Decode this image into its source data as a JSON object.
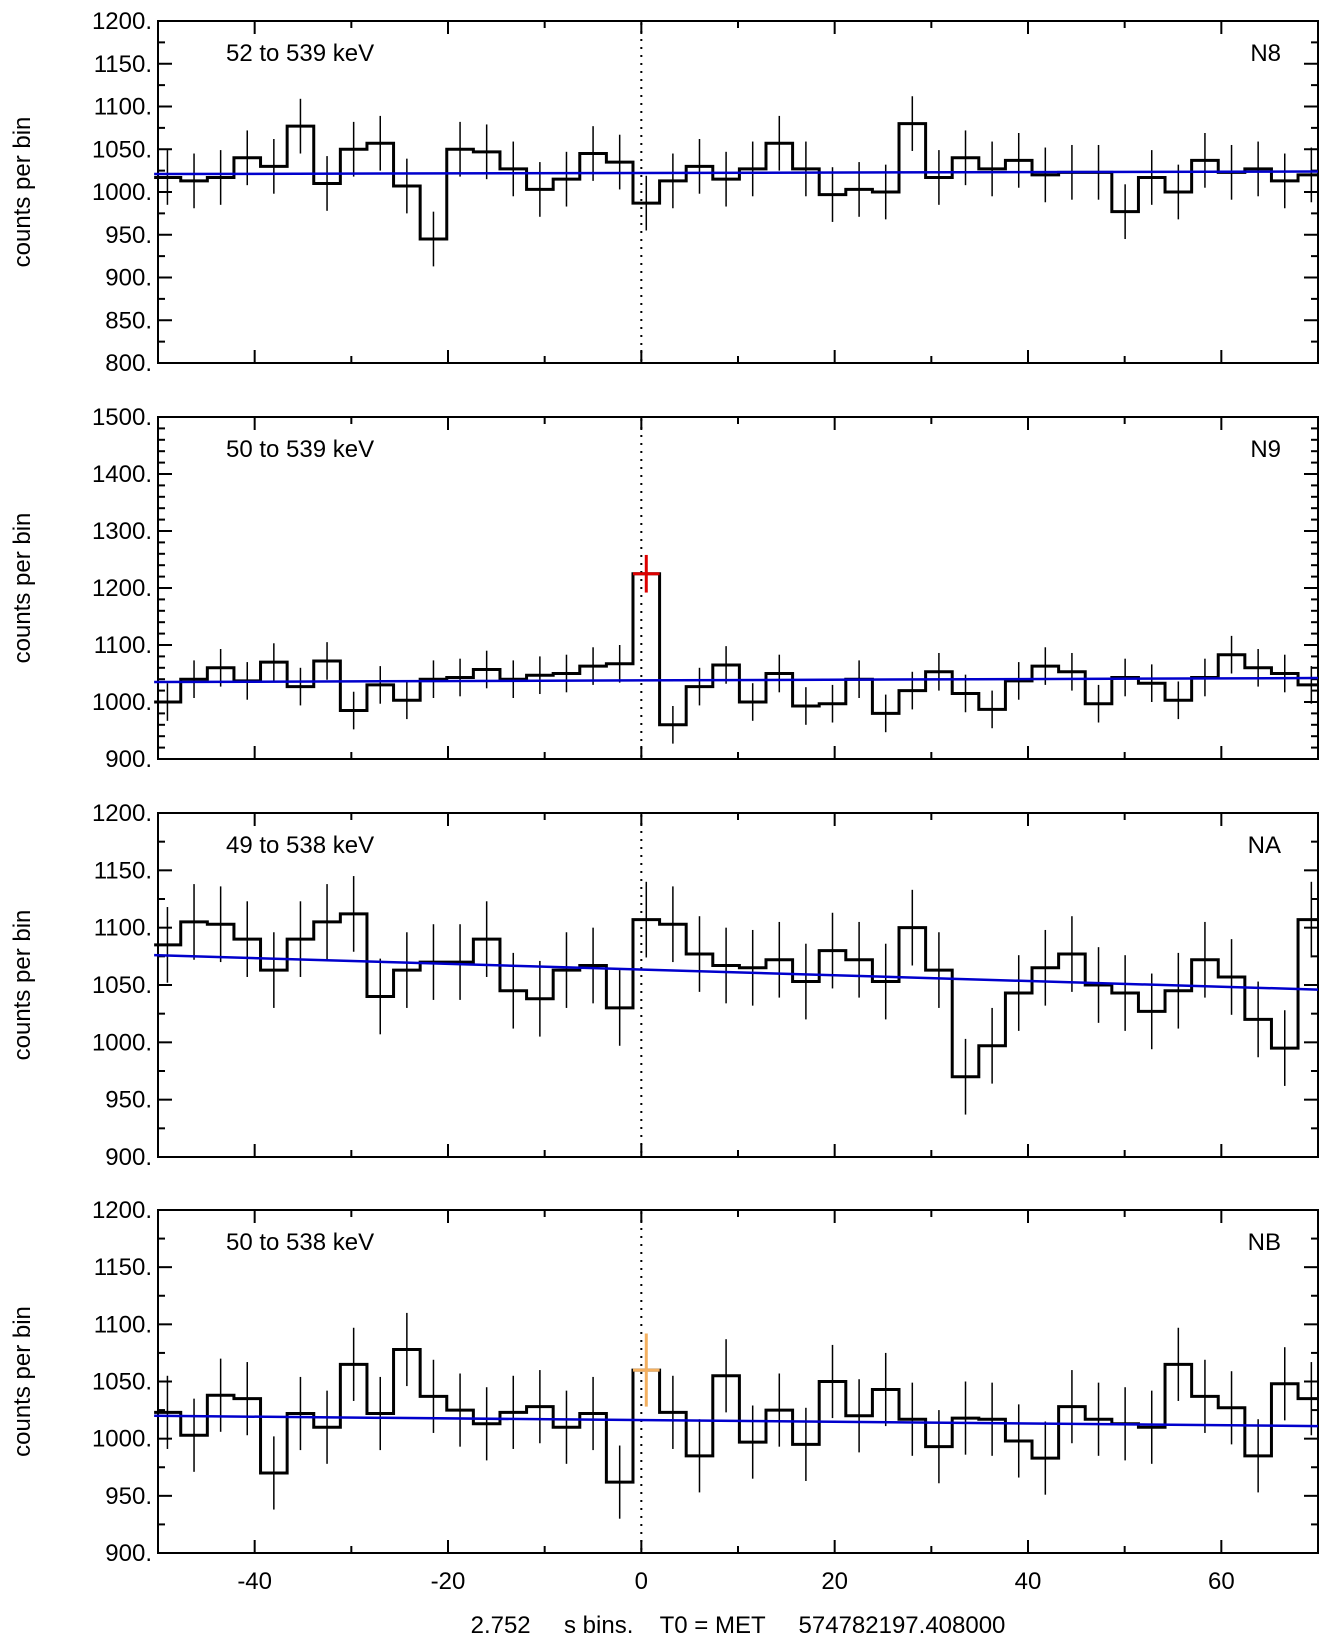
{
  "chart_data": {
    "type": "line",
    "bin_width": 2.752,
    "xlim": [
      -50,
      70
    ],
    "x_ticks": [
      -40,
      -20,
      0,
      20,
      40,
      60
    ],
    "x_tick_labels": [
      "-40",
      "-20",
      "0",
      "20",
      "40",
      "60"
    ],
    "x_axis_label": "2.752     s bins.    T0 = MET     574782197.408000",
    "ylabel": "counts per bin",
    "t0_marker": 0,
    "colors": {
      "histogram": "#000000",
      "background_fit": "#0000cc",
      "marker": "#000000"
    },
    "panels": [
      {
        "detector": "N8",
        "energy_label": "52 to 539 keV",
        "ylim": [
          800,
          1200
        ],
        "y_ticks": [
          800,
          850,
          900,
          950,
          1000,
          1050,
          1100,
          1150,
          1200
        ],
        "y_tick_labels": [
          "800.",
          "850.",
          "900.",
          "950.",
          "1000.",
          "1050.",
          "1100.",
          "1150.",
          "1200."
        ],
        "x_start": -50.4,
        "counts": [
          1017,
          1013,
          1017,
          1040,
          1030,
          1077,
          1010,
          1050,
          1057,
          1007,
          945,
          1050,
          1047,
          1027,
          1003,
          1015,
          1045,
          1035,
          987,
          1013,
          1030,
          1015,
          1027,
          1057,
          1027,
          997,
          1003,
          1000,
          1080,
          1017,
          1040,
          1027,
          1037,
          1020,
          1023,
          1023,
          977,
          1017,
          1000,
          1037,
          1023,
          1027,
          1013,
          1020
        ],
        "error": 32,
        "fit": [
          1021,
          1024
        ],
        "highlight": null
      },
      {
        "detector": "N9",
        "energy_label": "50 to 539 keV",
        "ylim": [
          900,
          1500
        ],
        "y_ticks": [
          900,
          1000,
          1100,
          1200,
          1300,
          1400,
          1500
        ],
        "y_tick_labels": [
          "900.",
          "1000.",
          "1100.",
          "1200.",
          "1300.",
          "1400.",
          "1500."
        ],
        "x_start": -50.4,
        "counts": [
          1000,
          1040,
          1060,
          1037,
          1070,
          1027,
          1072,
          985,
          1030,
          1003,
          1040,
          1043,
          1057,
          1040,
          1047,
          1050,
          1063,
          1067,
          1225,
          960,
          1027,
          1065,
          1000,
          1050,
          993,
          997,
          1040,
          980,
          1020,
          1053,
          1015,
          987,
          1037,
          1063,
          1053,
          997,
          1043,
          1033,
          1003,
          1043,
          1083,
          1060,
          1050,
          1030
        ],
        "error": 33,
        "fit": [
          1035,
          1042
        ],
        "highlight": {
          "bin": 18,
          "color": "#dd0000"
        }
      },
      {
        "detector": "NA",
        "energy_label": "49 to 538 keV",
        "ylim": [
          900,
          1200
        ],
        "y_ticks": [
          900,
          950,
          1000,
          1050,
          1100,
          1150,
          1200
        ],
        "y_tick_labels": [
          "900.",
          "950.",
          "1000.",
          "1050.",
          "1100.",
          "1150.",
          "1200."
        ],
        "x_start": -50.4,
        "counts": [
          1085,
          1105,
          1103,
          1090,
          1063,
          1090,
          1105,
          1112,
          1040,
          1063,
          1070,
          1070,
          1090,
          1045,
          1038,
          1063,
          1067,
          1030,
          1107,
          1103,
          1077,
          1067,
          1065,
          1072,
          1053,
          1080,
          1072,
          1053,
          1100,
          1063,
          970,
          997,
          1043,
          1065,
          1077,
          1050,
          1043,
          1027,
          1045,
          1072,
          1057,
          1020,
          995,
          1107
        ],
        "error": 33,
        "fit": [
          1076,
          1046
        ],
        "highlight": null
      },
      {
        "detector": "NB",
        "energy_label": "50 to 538 keV",
        "ylim": [
          900,
          1200
        ],
        "y_ticks": [
          900,
          950,
          1000,
          1050,
          1100,
          1150,
          1200
        ],
        "y_tick_labels": [
          "900.",
          "950.",
          "1000.",
          "1050.",
          "1100.",
          "1150.",
          "1200."
        ],
        "x_start": -50.4,
        "counts": [
          1023,
          1003,
          1038,
          1035,
          970,
          1022,
          1010,
          1065,
          1022,
          1078,
          1037,
          1025,
          1013,
          1023,
          1028,
          1010,
          1022,
          962,
          1060,
          1023,
          985,
          1055,
          997,
          1025,
          995,
          1050,
          1020,
          1043,
          1017,
          993,
          1018,
          1017,
          998,
          983,
          1028,
          1017,
          1013,
          1010,
          1065,
          1037,
          1027,
          985,
          1048,
          1035
        ],
        "error": 32,
        "fit": [
          1020,
          1011
        ],
        "highlight": {
          "bin": 18,
          "color": "#f4b060"
        }
      }
    ]
  }
}
